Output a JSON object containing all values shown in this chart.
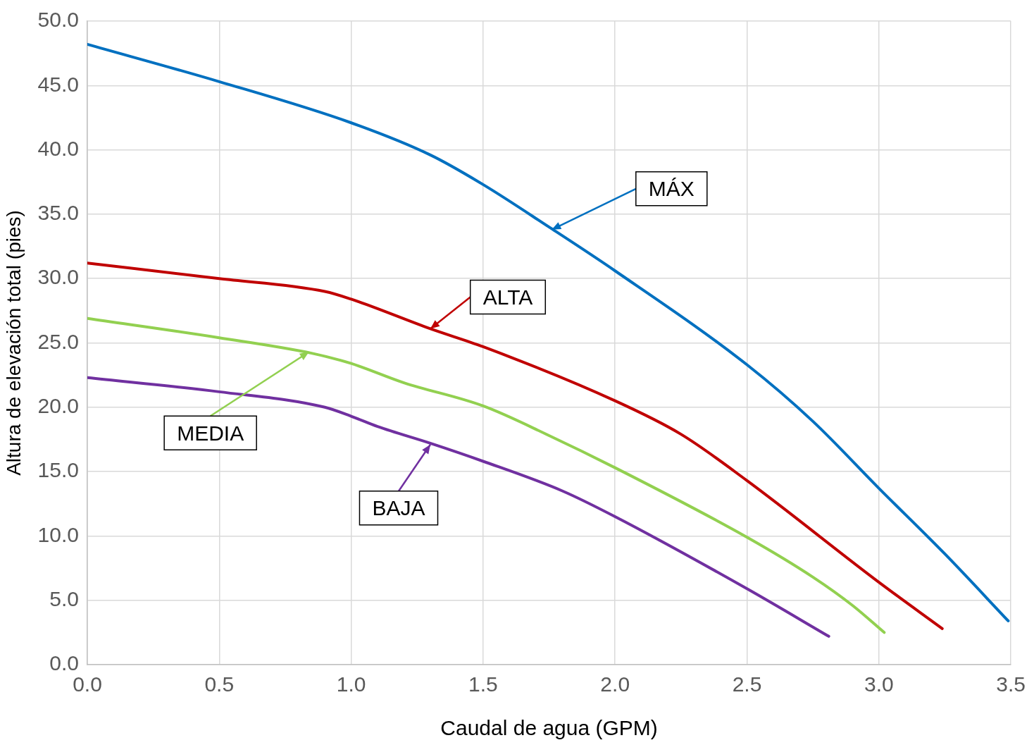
{
  "chart_data": {
    "type": "line",
    "xlabel": "Caudal de agua (GPM)",
    "ylabel": "Altura de elevación total (pies)",
    "xlim": [
      0,
      3.5
    ],
    "xticks": [
      {
        "value": 0,
        "label": "0.0"
      },
      {
        "value": 0.5,
        "label": "0.5"
      },
      {
        "value": 1,
        "label": "1.0"
      },
      {
        "value": 1.5,
        "label": "1.5"
      },
      {
        "value": 2,
        "label": "2.0"
      },
      {
        "value": 2.5,
        "label": "2.5"
      },
      {
        "value": 3,
        "label": "3.0"
      },
      {
        "value": 3.5,
        "label": "3.5"
      }
    ],
    "ylim": [
      0,
      50
    ],
    "yticks": [
      {
        "value": 0,
        "label": "0.0"
      },
      {
        "value": 5,
        "label": "5.0"
      },
      {
        "value": 10,
        "label": "10.0"
      },
      {
        "value": 15,
        "label": "15.0"
      },
      {
        "value": 20,
        "label": "20.0"
      },
      {
        "value": 25,
        "label": "25.0"
      },
      {
        "value": 30,
        "label": "30.0"
      },
      {
        "value": 35,
        "label": "35.0"
      },
      {
        "value": 40,
        "label": "40.0"
      },
      {
        "value": 45,
        "label": "45.0"
      },
      {
        "value": 50,
        "label": "50.0"
      }
    ],
    "grid": true,
    "marker": "none",
    "line_style": "solid",
    "series": [
      {
        "color": "#0070c0",
        "x": [
          0,
          0.5,
          1,
          1.3,
          1.5,
          1.75,
          2,
          2.5,
          2.75,
          3,
          3.25,
          3.49
        ],
        "values": [
          48.2,
          45.3,
          42.1,
          39.6,
          37.3,
          34,
          30.6,
          23.3,
          18.9,
          13.7,
          8.6,
          3.4
        ]
      },
      {
        "color": "#c00000",
        "x": [
          0,
          0.5,
          0.9,
          1,
          1.3,
          1.5,
          2,
          2.25,
          2.5,
          3,
          3.24
        ],
        "values": [
          31.2,
          30,
          29,
          28.4,
          26.1,
          24.7,
          20.5,
          17.9,
          14.3,
          6.4,
          2.8
        ]
      },
      {
        "color": "#92d050",
        "x": [
          0,
          0.5,
          0.85,
          1,
          1.2,
          1.5,
          1.75,
          2,
          2.5,
          2.75,
          2.9,
          3.02
        ],
        "values": [
          26.9,
          25.4,
          24.2,
          23.4,
          21.9,
          20.1,
          17.8,
          15.3,
          9.9,
          6.8,
          4.6,
          2.5
        ]
      },
      {
        "color": "#7030a0",
        "x": [
          0,
          0.5,
          0.9,
          1,
          1.1,
          1.3,
          1.5,
          1.8,
          2,
          2.5,
          2.81
        ],
        "values": [
          22.3,
          21.2,
          20,
          19.3,
          18.5,
          17.2,
          15.8,
          13.5,
          11.5,
          5.9,
          2.2
        ]
      }
    ],
    "annotations": [
      {
        "text": "MÁX",
        "x": 1.76,
        "y": 33.8
      },
      {
        "text": "ALTA",
        "x": 1.3,
        "y": 26.1
      },
      {
        "text": "MEDIA",
        "x": 0.84,
        "y": 24.3
      },
      {
        "text": "BAJA",
        "x": 1.3,
        "y": 17.1
      }
    ]
  }
}
